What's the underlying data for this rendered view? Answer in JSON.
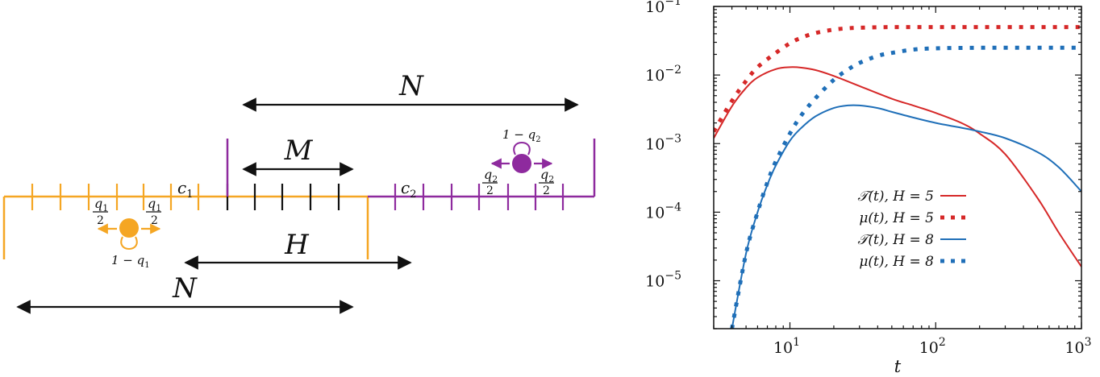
{
  "colors": {
    "orange": "#f5a623",
    "purple": "#8e2a9e",
    "black": "#111111",
    "red": "#d62828",
    "blue": "#1f6fb8"
  },
  "diagram": {
    "label_N_top": "N",
    "label_M": "M",
    "label_H": "H",
    "label_N_bottom": "N",
    "label_c1": "c",
    "label_c1_sub": "1",
    "label_c2": "c",
    "label_c2_sub": "2",
    "walker1": {
      "hop_left_num": "q",
      "hop_left_num_sub": "1",
      "hop_left_den": "2",
      "hop_right_num": "q",
      "hop_right_num_sub": "1",
      "hop_right_den": "2",
      "stay_text": "1 − q",
      "stay_sub": "1"
    },
    "walker2": {
      "hop_left_num": "q",
      "hop_left_num_sub": "2",
      "hop_left_den": "2",
      "hop_right_num": "q",
      "hop_right_num_sub": "2",
      "hop_right_den": "2",
      "stay_text": "1 − q",
      "stay_sub": "2"
    }
  },
  "chart_data": {
    "type": "line",
    "xlabel": "t",
    "ylabel": "",
    "xscale": "log",
    "yscale": "log",
    "xlim": [
      3,
      1000
    ],
    "ylim": [
      2e-06,
      0.1
    ],
    "x_ticks": [
      {
        "base": "10",
        "exp": "1",
        "value": 10
      },
      {
        "base": "10",
        "exp": "2",
        "value": 100
      },
      {
        "base": "10",
        "exp": "3",
        "value": 1000
      }
    ],
    "y_ticks": [
      {
        "base": "10",
        "exp": "−1",
        "value": 0.1
      },
      {
        "base": "10",
        "exp": "−2",
        "value": 0.01
      },
      {
        "base": "10",
        "exp": "−3",
        "value": 0.001
      },
      {
        "base": "10",
        "exp": "−4",
        "value": 0.0001
      },
      {
        "base": "10",
        "exp": "−5",
        "value": 1e-05
      }
    ],
    "legend_position": "bottom-right",
    "series": [
      {
        "name": "𝒯(t), H = 5",
        "color": "#d62828",
        "style": "solid",
        "x": [
          3,
          4,
          5,
          6,
          8,
          10,
          12,
          15,
          20,
          30,
          50,
          70,
          100,
          150,
          200,
          300,
          500,
          700,
          1000
        ],
        "y": [
          0.0012,
          0.0035,
          0.0065,
          0.0092,
          0.0122,
          0.013,
          0.0128,
          0.0118,
          0.0097,
          0.0069,
          0.0045,
          0.0036,
          0.0028,
          0.002,
          0.0014,
          0.0007,
          0.00016,
          5e-05,
          1.6e-05
        ]
      },
      {
        "name": "μ(t), H = 5",
        "color": "#d62828",
        "style": "dotted",
        "x": [
          3,
          4,
          5,
          6,
          8,
          10,
          12,
          15,
          20,
          25,
          30,
          40,
          50,
          70,
          100,
          200,
          500,
          1000
        ],
        "y": [
          0.0015,
          0.0042,
          0.0082,
          0.013,
          0.021,
          0.029,
          0.035,
          0.041,
          0.046,
          0.048,
          0.049,
          0.0497,
          0.05,
          0.05,
          0.05,
          0.05,
          0.05,
          0.05
        ]
      },
      {
        "name": "𝒯(t), H = 8",
        "color": "#1f6fb8",
        "style": "solid",
        "x": [
          4,
          5,
          6,
          7,
          8,
          10,
          12,
          15,
          20,
          25,
          30,
          40,
          50,
          70,
          100,
          150,
          200,
          300,
          500,
          700,
          1000
        ],
        "y": [
          2e-06,
          2.5e-05,
          0.0001,
          0.00025,
          0.00048,
          0.0011,
          0.0017,
          0.0025,
          0.0033,
          0.0036,
          0.0036,
          0.0033,
          0.0029,
          0.0024,
          0.002,
          0.0017,
          0.0015,
          0.0012,
          0.00075,
          0.00045,
          0.0002
        ]
      },
      {
        "name": "μ(t), H = 8",
        "color": "#1f6fb8",
        "style": "dotted",
        "x": [
          4,
          5,
          6,
          7,
          8,
          10,
          12,
          15,
          20,
          25,
          30,
          40,
          50,
          70,
          100,
          200,
          500,
          1000
        ],
        "y": [
          2e-06,
          2.5e-05,
          0.0001,
          0.00027,
          0.00055,
          0.0014,
          0.0026,
          0.0046,
          0.0085,
          0.012,
          0.015,
          0.019,
          0.021,
          0.0235,
          0.0245,
          0.025,
          0.025,
          0.025
        ]
      }
    ]
  }
}
